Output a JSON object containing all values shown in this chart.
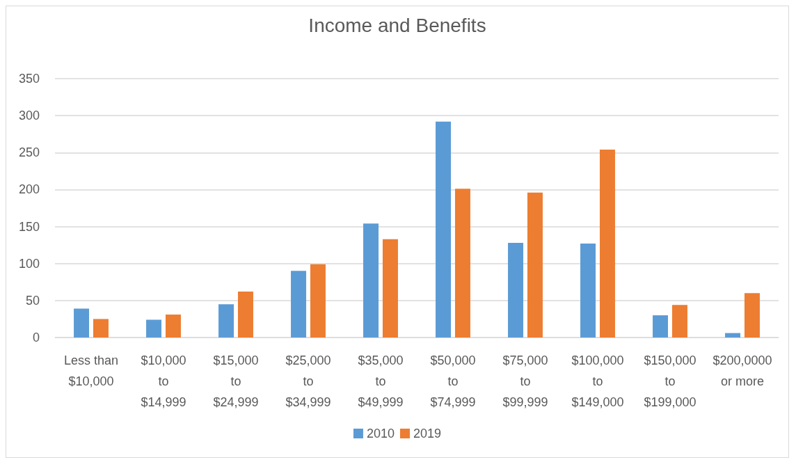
{
  "chart_data": {
    "type": "bar",
    "title": "Income and Benefits",
    "categories": [
      "Less than\n$10,000",
      "$10,000\nto\n$14,999",
      "$15,000\nto\n$24,999",
      "$25,000\nto\n$34,999",
      "$35,000\nto\n$49,999",
      "$50,000\nto\n$74,999",
      "$75,000\nto\n$99,999",
      "$100,000\nto\n$149,000",
      "$150,000\nto\n$199,000",
      "$200,0000\nor more"
    ],
    "series": [
      {
        "name": "2010",
        "color": "#5b9bd5",
        "values": [
          39,
          24,
          45,
          90,
          154,
          292,
          128,
          127,
          30,
          6
        ]
      },
      {
        "name": "2019",
        "color": "#ed7d31",
        "values": [
          25,
          31,
          62,
          99,
          133,
          201,
          196,
          254,
          44,
          60
        ]
      }
    ],
    "ylim": [
      0,
      350
    ],
    "yticks": [
      0,
      50,
      100,
      150,
      200,
      250,
      300,
      350
    ],
    "grid": "y",
    "legend": "bottom"
  }
}
